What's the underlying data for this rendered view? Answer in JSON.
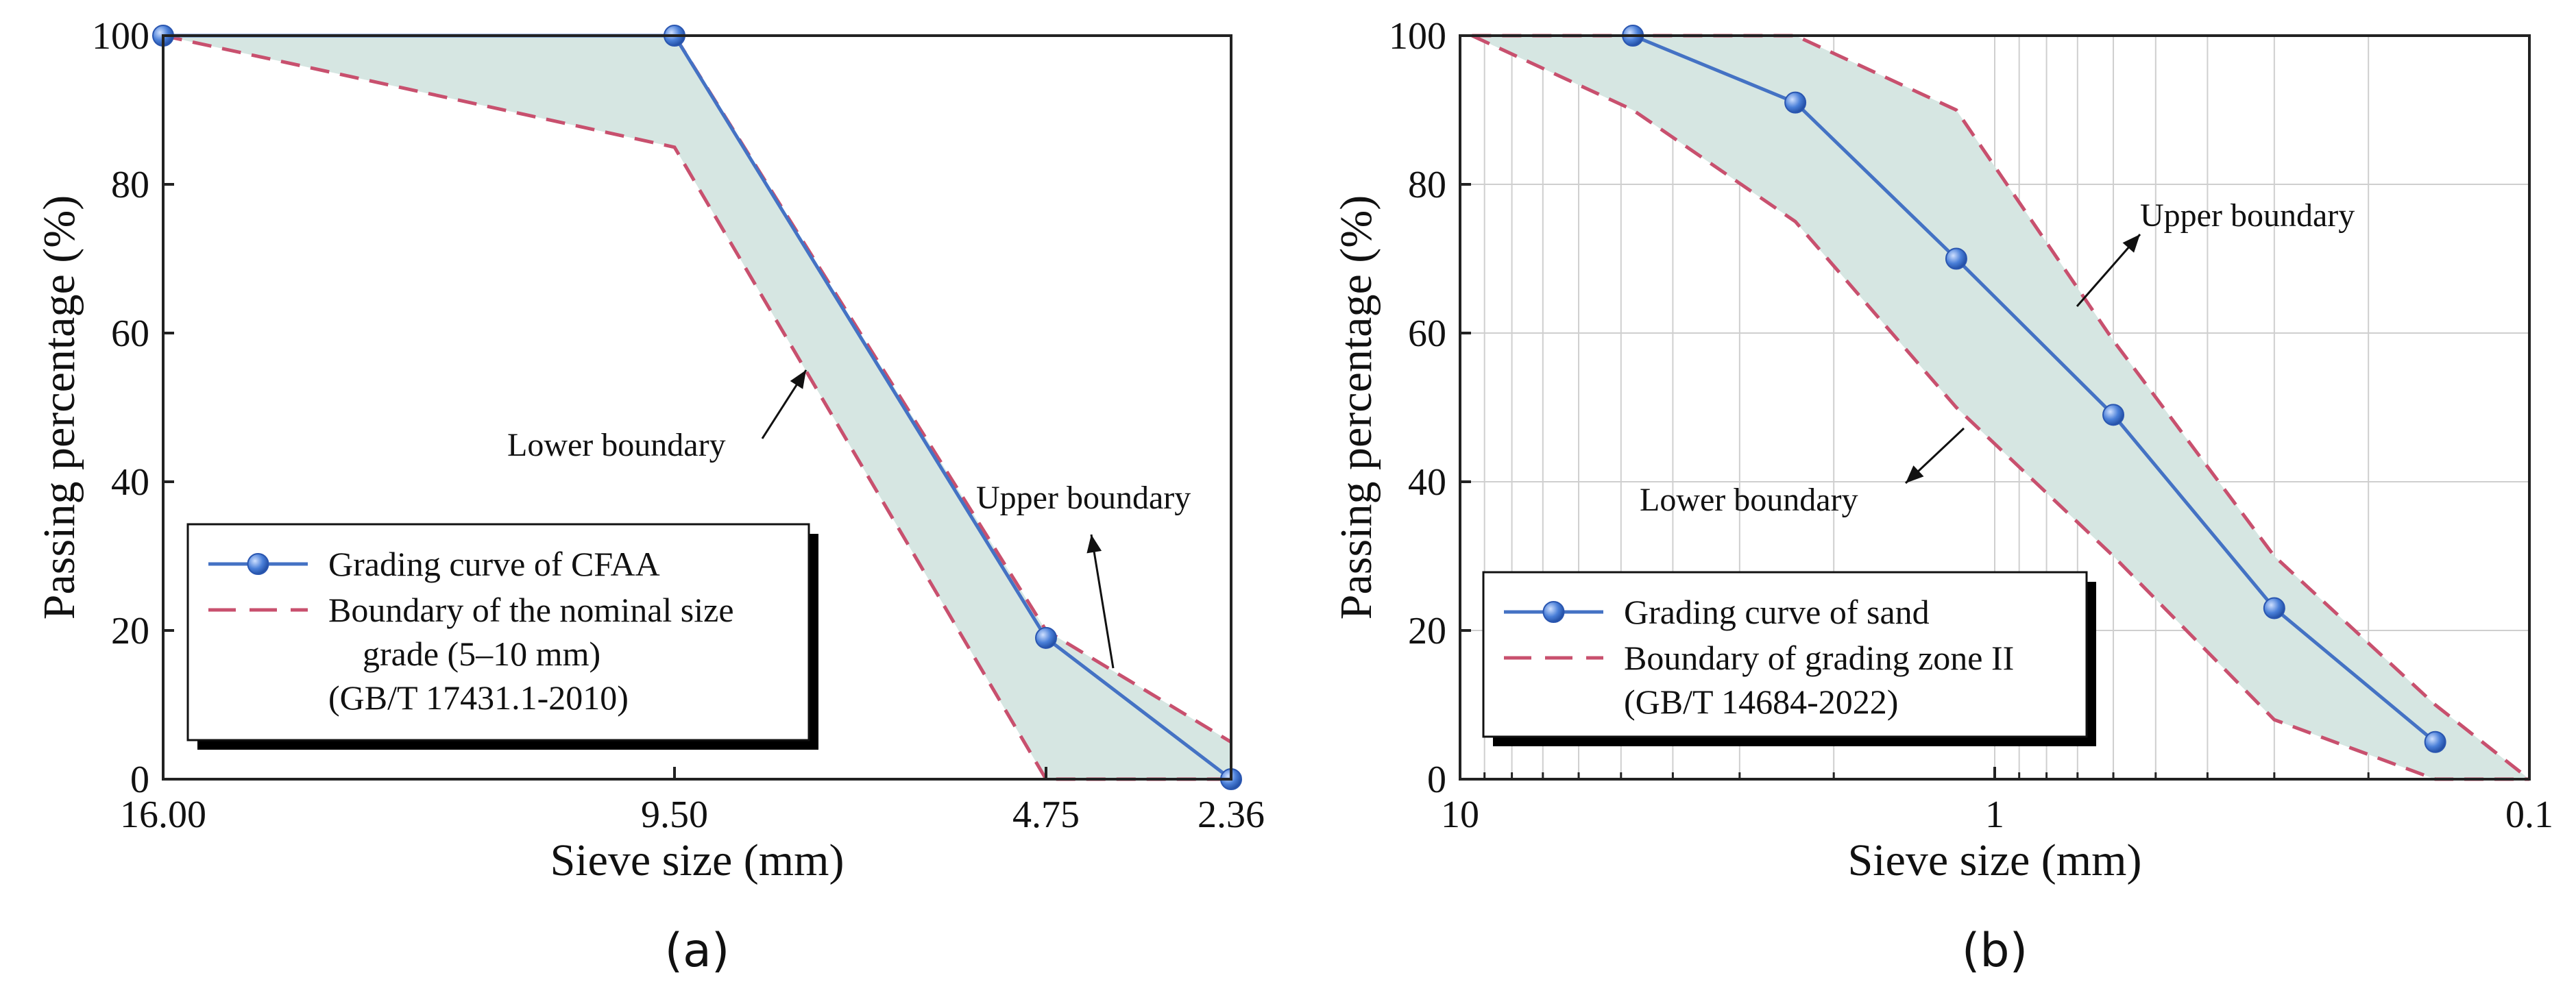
{
  "colors": {
    "curve": "#4472C4",
    "boundary": "#C8506E",
    "fill": "#D6E6E2",
    "grid": "#CFCFCF",
    "axis": "#222222"
  },
  "chart_data": [
    {
      "type": "line",
      "panel_label": "(a)",
      "title": "",
      "xlabel": "Sieve size (mm)",
      "ylabel": "Passing percentage (%)",
      "x_scale": "categorical",
      "categories": [
        "16.00",
        "9.50",
        "4.75",
        "2.36"
      ],
      "ylim": [
        0,
        100
      ],
      "yticks": [
        "0",
        "20",
        "40",
        "60",
        "80",
        "100"
      ],
      "series": [
        {
          "name": "Grading curve of CFAA",
          "values": [
            100,
            100,
            19,
            0
          ]
        },
        {
          "name": "Upper boundary",
          "values": [
            100,
            100,
            20,
            5
          ]
        },
        {
          "name": "Lower boundary",
          "values": [
            100,
            85,
            0,
            0
          ]
        }
      ],
      "legend": {
        "placement": "bottom-left",
        "curve_label": "Grading curve of CFAA",
        "boundary_label_lines": [
          "Boundary of the nominal size",
          "grade (5–10 mm)",
          "(GB/T 17431.1-2010)"
        ]
      },
      "annotations": {
        "lower": "Lower boundary",
        "upper": "Upper boundary"
      }
    },
    {
      "type": "line",
      "panel_label": "(b)",
      "title": "",
      "xlabel": "Sieve size (mm)",
      "ylabel": "Passing percentage (%)",
      "x_scale": "log-reversed",
      "xlim": [
        10,
        0.1
      ],
      "xticks": [
        "10",
        "1",
        "0.1"
      ],
      "ylim": [
        0,
        100
      ],
      "yticks": [
        "0",
        "20",
        "40",
        "60",
        "80",
        "100"
      ],
      "series": [
        {
          "name": "Grading curve of sand",
          "x": [
            4.75,
            2.36,
            1.18,
            0.6,
            0.3,
            0.15
          ],
          "values": [
            100,
            91,
            70,
            49,
            23,
            5
          ]
        },
        {
          "name": "Upper boundary",
          "x": [
            9.5,
            4.75,
            2.36,
            1.18,
            0.6,
            0.3,
            0.15,
            0.1
          ],
          "values": [
            100,
            100,
            100,
            90,
            59,
            30,
            10,
            0
          ]
        },
        {
          "name": "Lower boundary",
          "x": [
            9.5,
            4.75,
            2.36,
            1.18,
            0.6,
            0.3,
            0.15,
            0.1
          ],
          "values": [
            100,
            90,
            75,
            50,
            30,
            8,
            0,
            0
          ]
        }
      ],
      "legend": {
        "placement": "bottom-left",
        "curve_label": "Grading curve of sand",
        "boundary_label_lines": [
          "Boundary of grading zone II",
          "(GB/T 14684-2022)"
        ]
      },
      "annotations": {
        "lower": "Lower boundary",
        "upper": "Upper boundary"
      }
    }
  ]
}
